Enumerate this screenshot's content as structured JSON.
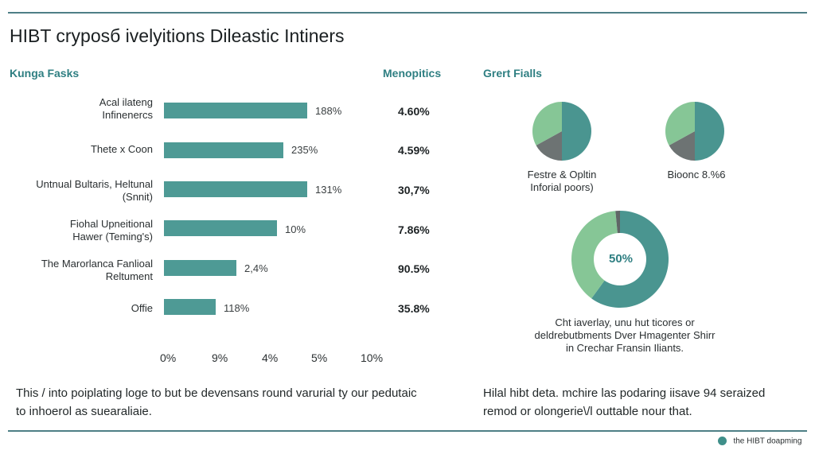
{
  "page": {
    "title": "HIBT cryposб ivelyitions Dileastic Intiners",
    "left_section_title": "Kunga Fasks",
    "metrics_title": "Menopitics",
    "right_section_title": "Grert Fialls"
  },
  "colors": {
    "bar": "#4e9a95",
    "teal": "#4a9590",
    "green": "#86c696",
    "gray": "#6d7373",
    "rule": "#4e7f86"
  },
  "chart_data": [
    {
      "type": "bar",
      "orientation": "horizontal",
      "categories": [
        "Acal ilateng\nInfinenercs",
        "Thete x Coon",
        "Untnual Bultaris, Heltunal\n(Snnit)",
        "Fiohal Upneitional\nHawer (Teming's)",
        "The Marorlanca Fanlioal\nReltument",
        "Offie"
      ],
      "values": [
        6.1,
        5.1,
        6.1,
        4.8,
        3.1,
        2.2
      ],
      "data_labels": [
        "188%",
        "235%",
        "131%",
        "10%",
        "2,4%",
        "118%"
      ],
      "xlim": [
        0,
        10
      ],
      "tick_positions": [
        0,
        2.2,
        4.35,
        6.45,
        8.55
      ],
      "tick_labels": [
        "0%",
        "9%",
        "4%",
        "5%",
        "10%"
      ],
      "metrics": [
        "4.60%",
        "4.59%",
        "30,7%",
        "7.86%",
        "90.5%",
        "35.8%"
      ]
    },
    {
      "type": "pie",
      "caption": "Festre & Opltin\nInforial poors)",
      "slices": [
        {
          "name": "teal",
          "value": 50,
          "color": "#4a9590"
        },
        {
          "name": "gray",
          "value": 17,
          "color": "#6d7373"
        },
        {
          "name": "green",
          "value": 33,
          "color": "#86c696"
        }
      ]
    },
    {
      "type": "pie",
      "caption": "Bioonc 8.%6",
      "slices": [
        {
          "name": "teal",
          "value": 50,
          "color": "#4a9590"
        },
        {
          "name": "gray",
          "value": 17,
          "color": "#6d7373"
        },
        {
          "name": "green",
          "value": 33,
          "color": "#86c696"
        }
      ]
    },
    {
      "type": "donut",
      "center_label": "50%",
      "caption": "Cht iaverlay, unu hut ticores or\ndeldrebutbments Dver Hmagenter Shirr\nin Crechar Fransin Iliants.",
      "slices": [
        {
          "name": "teal",
          "value": 60,
          "color": "#4a9590"
        },
        {
          "name": "green",
          "value": 38.5,
          "color": "#86c696"
        },
        {
          "name": "gray",
          "value": 1.5,
          "color": "#5f6666"
        }
      ]
    }
  ],
  "footer": {
    "left_text": "This / into poiplating loge to but be devensans round varurial ty our pedutaic\nto inhoerol as suearaliaie.",
    "right_text": "Hilal hibt deta. mchire las podaring iisave 94 seraized\nremod or olongerie\\/l outtable nour that.",
    "brand_text": "the HIBT doapming"
  }
}
